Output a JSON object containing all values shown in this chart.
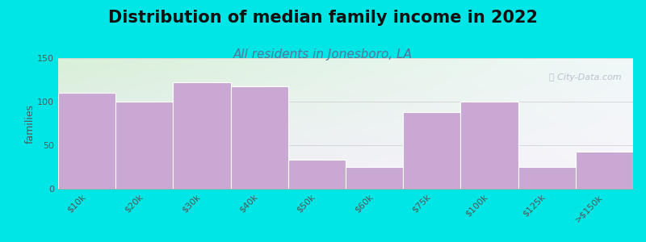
{
  "title": "Distribution of median family income in 2022",
  "subtitle": "All residents in Jonesboro, LA",
  "categories": [
    "$10k",
    "$20k",
    "$30k",
    "$40k",
    "$50k",
    "$60k",
    "$75k",
    "$100k",
    "$125k",
    ">$150k"
  ],
  "values": [
    110,
    100,
    122,
    118,
    33,
    25,
    88,
    100,
    25,
    43
  ],
  "bar_color": "#c9a8d4",
  "bar_edgecolor": "#ffffff",
  "ylabel": "families",
  "ylim": [
    0,
    150
  ],
  "yticks": [
    0,
    50,
    100,
    150
  ],
  "background_color": "#00e5e5",
  "plot_bg_topleft": "#d8f0d8",
  "plot_bg_bottomright": "#f8f4fc",
  "title_fontsize": 15,
  "subtitle_fontsize": 11,
  "watermark_text": "ⓘ City-Data.com",
  "watermark_color": "#b0b8c8"
}
